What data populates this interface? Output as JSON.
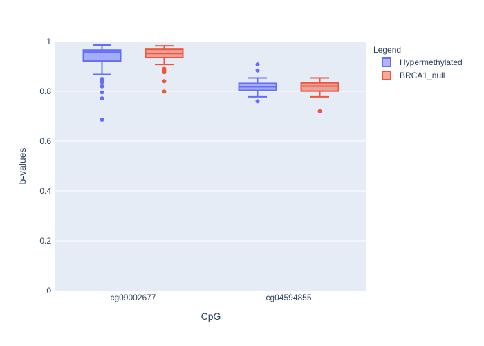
{
  "chart_data": {
    "type": "box",
    "title": "",
    "xlabel": "CpG",
    "ylabel": "b-values",
    "ylim": [
      0,
      1
    ],
    "yticks": [
      0,
      0.2,
      0.4,
      0.6,
      0.8,
      1
    ],
    "ytick_labels": [
      "0",
      "0.2",
      "0.4",
      "0.6",
      "0.8",
      "1"
    ],
    "categories": [
      "cg09002677",
      "cg04594855"
    ],
    "grid": true,
    "legend": {
      "title": "Legend",
      "position": "right"
    },
    "series": [
      {
        "name": "Hypermethylated",
        "color": "#636efa",
        "fill": "rgba(99,110,250,0.5)",
        "boxes": [
          {
            "category": "cg09002677",
            "lower_fence": 0.868,
            "q1": 0.922,
            "median": 0.958,
            "q3": 0.966,
            "upper_fence": 0.986,
            "outliers": [
              0.85,
              0.843,
              0.837,
              0.82,
              0.796,
              0.772,
              0.686
            ]
          },
          {
            "category": "cg04594855",
            "lower_fence": 0.778,
            "q1": 0.804,
            "median": 0.818,
            "q3": 0.832,
            "upper_fence": 0.854,
            "outliers": [
              0.908,
              0.884,
              0.76
            ]
          }
        ]
      },
      {
        "name": "BRCA1_null",
        "color": "#ef553b",
        "fill": "rgba(239,85,59,0.5)",
        "boxes": [
          {
            "category": "cg09002677",
            "lower_fence": 0.908,
            "q1": 0.936,
            "median": 0.952,
            "q3": 0.969,
            "upper_fence": 0.983,
            "outliers": [
              0.89,
              0.884,
              0.877,
              0.841,
              0.799
            ]
          },
          {
            "category": "cg04594855",
            "lower_fence": 0.778,
            "q1": 0.801,
            "median": 0.821,
            "q3": 0.834,
            "upper_fence": 0.854,
            "outliers": [
              0.72
            ]
          }
        ]
      }
    ]
  }
}
